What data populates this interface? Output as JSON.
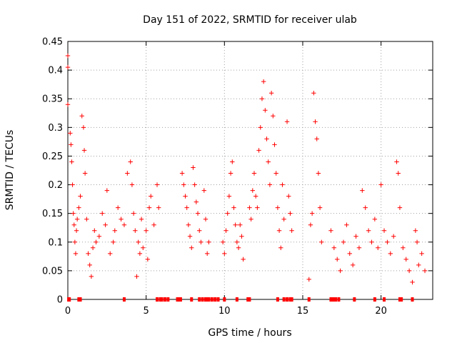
{
  "chart_data": {
    "type": "scatter",
    "title": "Day 151 of 2022, SRMTID for receiver ulab",
    "xlabel": "GPS time / hours",
    "ylabel": "SRMTID / TECUs",
    "xlim": [
      0,
      23.3
    ],
    "ylim": [
      0,
      0.45
    ],
    "xticks": [
      0,
      5,
      10,
      15,
      20
    ],
    "xtick_labels": [
      "0",
      "5",
      "10",
      "15",
      "20"
    ],
    "yticks": [
      0,
      0.05,
      0.1,
      0.15,
      0.2,
      0.25,
      0.3,
      0.35,
      0.4,
      0.45
    ],
    "ytick_labels": [
      "0",
      "0.05",
      "0.1",
      "0.15",
      "0.2",
      "0.25",
      "0.3",
      "0.35",
      "0.4",
      "0.45"
    ],
    "grid": true,
    "marker": "+",
    "color": "#ff0000",
    "series": [
      {
        "name": "SRMTID",
        "points": [
          [
            0.0,
            0.425
          ],
          [
            0.0,
            0.405
          ],
          [
            0.0,
            0.34
          ],
          [
            0.15,
            0.29
          ],
          [
            0.2,
            0.27
          ],
          [
            0.25,
            0.24
          ],
          [
            0.3,
            0.2
          ],
          [
            0.35,
            0.15
          ],
          [
            0.4,
            0.13
          ],
          [
            0.45,
            0.1
          ],
          [
            0.5,
            0.08
          ],
          [
            0.55,
            0.12
          ],
          [
            0.6,
            0.14
          ],
          [
            0.7,
            0.16
          ],
          [
            0.8,
            0.18
          ],
          [
            0.9,
            0.32
          ],
          [
            1.0,
            0.3
          ],
          [
            1.05,
            0.26
          ],
          [
            1.1,
            0.22
          ],
          [
            1.2,
            0.14
          ],
          [
            1.3,
            0.08
          ],
          [
            1.4,
            0.06
          ],
          [
            1.5,
            0.04
          ],
          [
            1.6,
            0.09
          ],
          [
            1.7,
            0.12
          ],
          [
            1.8,
            0.1
          ],
          [
            2.0,
            0.11
          ],
          [
            2.2,
            0.15
          ],
          [
            2.4,
            0.13
          ],
          [
            2.5,
            0.19
          ],
          [
            2.7,
            0.08
          ],
          [
            2.9,
            0.1
          ],
          [
            3.0,
            0.12
          ],
          [
            3.2,
            0.16
          ],
          [
            3.4,
            0.14
          ],
          [
            3.6,
            0.13
          ],
          [
            3.8,
            0.22
          ],
          [
            4.0,
            0.24
          ],
          [
            4.1,
            0.2
          ],
          [
            4.2,
            0.15
          ],
          [
            4.3,
            0.12
          ],
          [
            4.4,
            0.04
          ],
          [
            4.5,
            0.1
          ],
          [
            4.6,
            0.08
          ],
          [
            4.7,
            0.14
          ],
          [
            4.8,
            0.09
          ],
          [
            5.0,
            0.12
          ],
          [
            5.1,
            0.07
          ],
          [
            5.2,
            0.16
          ],
          [
            5.3,
            0.18
          ],
          [
            5.5,
            0.13
          ],
          [
            5.7,
            0.2
          ],
          [
            5.8,
            0.16
          ],
          [
            7.3,
            0.22
          ],
          [
            7.4,
            0.2
          ],
          [
            7.5,
            0.18
          ],
          [
            7.6,
            0.16
          ],
          [
            7.7,
            0.13
          ],
          [
            7.8,
            0.11
          ],
          [
            7.9,
            0.09
          ],
          [
            8.0,
            0.23
          ],
          [
            8.1,
            0.2
          ],
          [
            8.2,
            0.17
          ],
          [
            8.3,
            0.15
          ],
          [
            8.4,
            0.12
          ],
          [
            8.5,
            0.1
          ],
          [
            8.7,
            0.19
          ],
          [
            8.8,
            0.14
          ],
          [
            8.9,
            0.08
          ],
          [
            9.0,
            0.1
          ],
          [
            9.9,
            0.1
          ],
          [
            10.0,
            0.08
          ],
          [
            10.1,
            0.12
          ],
          [
            10.2,
            0.15
          ],
          [
            10.3,
            0.18
          ],
          [
            10.4,
            0.22
          ],
          [
            10.5,
            0.24
          ],
          [
            10.6,
            0.16
          ],
          [
            10.7,
            0.13
          ],
          [
            10.8,
            0.1
          ],
          [
            10.9,
            0.09
          ],
          [
            11.0,
            0.13
          ],
          [
            11.1,
            0.11
          ],
          [
            11.2,
            0.07
          ],
          [
            11.6,
            0.16
          ],
          [
            11.7,
            0.14
          ],
          [
            11.8,
            0.19
          ],
          [
            11.9,
            0.22
          ],
          [
            12.0,
            0.18
          ],
          [
            12.1,
            0.16
          ],
          [
            12.2,
            0.26
          ],
          [
            12.3,
            0.3
          ],
          [
            12.4,
            0.35
          ],
          [
            12.5,
            0.38
          ],
          [
            12.6,
            0.33
          ],
          [
            12.7,
            0.28
          ],
          [
            12.8,
            0.24
          ],
          [
            12.9,
            0.2
          ],
          [
            13.0,
            0.36
          ],
          [
            13.1,
            0.32
          ],
          [
            13.2,
            0.27
          ],
          [
            13.3,
            0.22
          ],
          [
            13.4,
            0.16
          ],
          [
            13.5,
            0.12
          ],
          [
            13.6,
            0.09
          ],
          [
            13.7,
            0.2
          ],
          [
            13.8,
            0.14
          ],
          [
            14.0,
            0.31
          ],
          [
            14.1,
            0.18
          ],
          [
            14.2,
            0.15
          ],
          [
            14.3,
            0.12
          ],
          [
            15.4,
            0.035
          ],
          [
            15.5,
            0.13
          ],
          [
            15.6,
            0.15
          ],
          [
            15.7,
            0.36
          ],
          [
            15.8,
            0.31
          ],
          [
            15.9,
            0.28
          ],
          [
            16.0,
            0.22
          ],
          [
            16.1,
            0.16
          ],
          [
            16.2,
            0.1
          ],
          [
            16.8,
            0.12
          ],
          [
            17.0,
            0.09
          ],
          [
            17.2,
            0.07
          ],
          [
            17.4,
            0.05
          ],
          [
            17.6,
            0.1
          ],
          [
            17.8,
            0.13
          ],
          [
            18.0,
            0.08
          ],
          [
            18.2,
            0.06
          ],
          [
            18.4,
            0.11
          ],
          [
            18.6,
            0.09
          ],
          [
            18.8,
            0.19
          ],
          [
            19.0,
            0.16
          ],
          [
            19.2,
            0.12
          ],
          [
            19.4,
            0.1
          ],
          [
            19.6,
            0.14
          ],
          [
            19.8,
            0.09
          ],
          [
            20.0,
            0.2
          ],
          [
            20.2,
            0.12
          ],
          [
            20.4,
            0.1
          ],
          [
            20.6,
            0.08
          ],
          [
            20.8,
            0.11
          ],
          [
            21.0,
            0.24
          ],
          [
            21.1,
            0.22
          ],
          [
            21.2,
            0.16
          ],
          [
            21.4,
            0.09
          ],
          [
            21.6,
            0.07
          ],
          [
            21.8,
            0.05
          ],
          [
            22.0,
            0.03
          ],
          [
            22.2,
            0.12
          ],
          [
            22.3,
            0.1
          ],
          [
            22.4,
            0.06
          ],
          [
            22.6,
            0.08
          ],
          [
            22.8,
            0.05
          ]
        ]
      }
    ],
    "gap_markers": [
      0.05,
      0.1,
      0.7,
      0.8,
      3.6,
      5.7,
      5.9,
      6.0,
      6.2,
      6.4,
      7.0,
      7.1,
      7.2,
      7.9,
      8.4,
      8.6,
      8.8,
      8.9,
      9.0,
      9.2,
      9.4,
      9.6,
      10.0,
      10.8,
      11.5,
      11.6,
      13.4,
      13.8,
      14.0,
      14.2,
      14.3,
      15.4,
      16.8,
      16.9,
      17.0,
      17.1,
      17.3,
      18.3,
      19.6,
      20.2,
      21.2,
      21.3,
      22.0
    ]
  }
}
